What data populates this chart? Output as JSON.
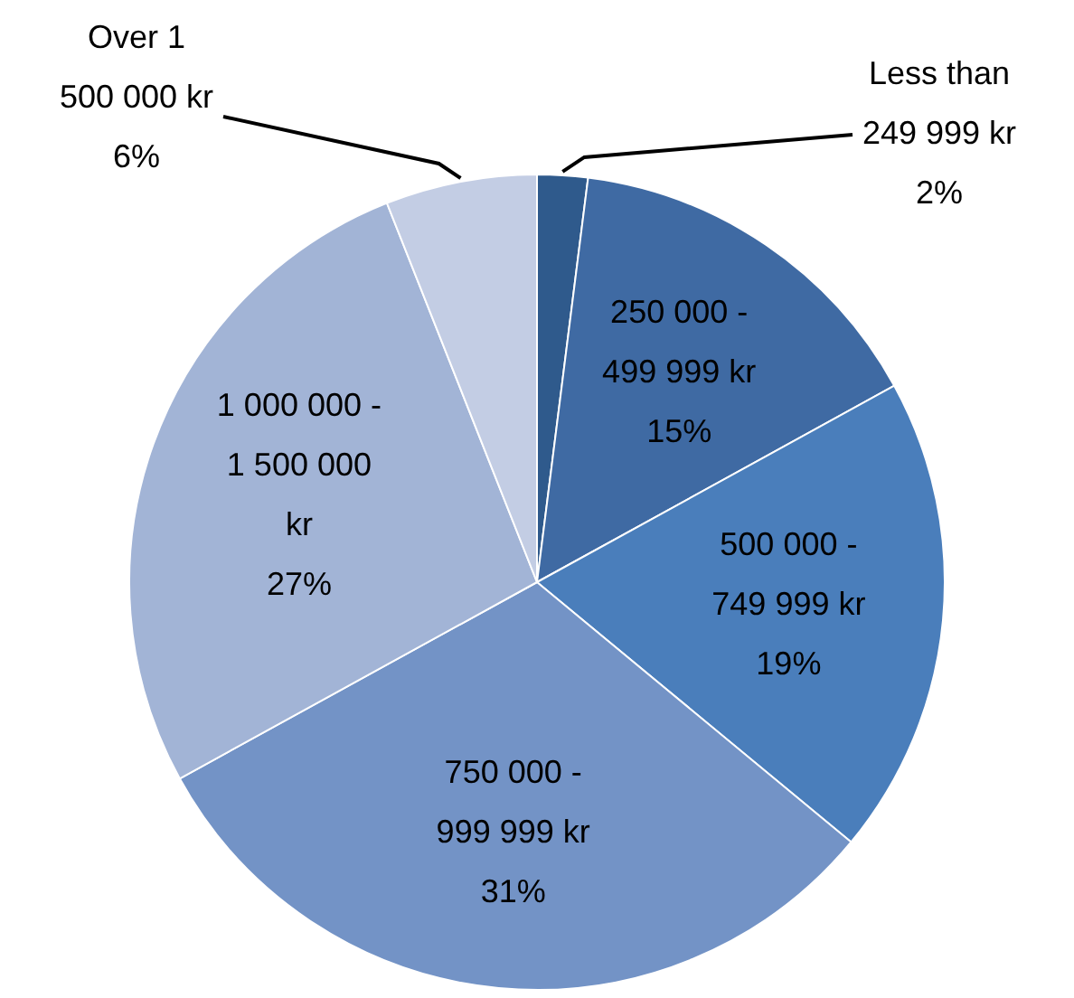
{
  "chart_data": {
    "type": "pie",
    "categories": [
      "Less than 249 999 kr",
      "250 000 - 499 999 kr",
      "500 000 - 749 999 kr",
      "750 000 - 999 999 kr",
      "1 000 000 - 1 500 000 kr",
      "Over 1 500 000 kr"
    ],
    "values": [
      2,
      15,
      19,
      31,
      27,
      6
    ],
    "value_labels": [
      "2%",
      "15%",
      "19%",
      "31%",
      "27%",
      "6%"
    ],
    "data_labels": true,
    "colors": [
      "#2f5a8c",
      "#3f6aa3",
      "#4a7ebb",
      "#7393c6",
      "#a2b4d6",
      "#c3cde4"
    ],
    "legend": false
  }
}
